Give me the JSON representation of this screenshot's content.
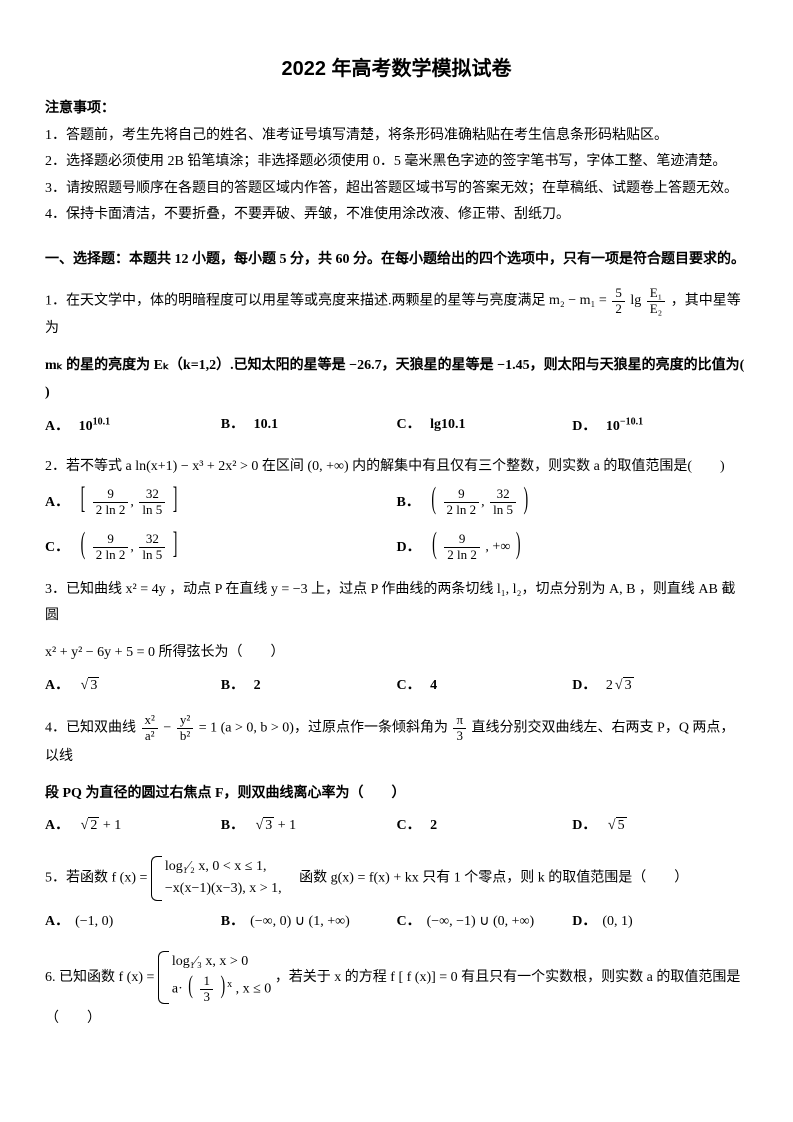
{
  "title": "2022 年高考数学模拟试卷",
  "notice_head": "注意事项：",
  "notice": [
    "1．答题前，考生先将自己的姓名、准考证号填写清楚，将条形码准确粘贴在考生信息条形码粘贴区。",
    "2．选择题必须使用 2B 铅笔填涂；非选择题必须使用 0．5 毫米黑色字迹的签字笔书写，字体工整、笔迹清楚。",
    "3．请按照题号顺序在各题目的答题区域内作答，超出答题区域书写的答案无效；在草稿纸、试题卷上答题无效。",
    "4．保持卡面清洁，不要折叠，不要弄破、弄皱，不准使用涂改液、修正带、刮纸刀。"
  ],
  "section1": "一、选择题：本题共 12 小题，每小题 5 分，共 60 分。在每小题给出的四个选项中，只有一项是符合题目要求的。",
  "q1_a": "1．在天文学中，体的明暗程度可以用星等或亮度来描述.两颗星的星等与亮度满足 ",
  "q1_eq_lhs": "m₂ − m₁ = ",
  "q1_frac_n": "5",
  "q1_frac_d": "2",
  "q1_eq_rhs_a": "lg",
  "q1_frac2_n": "E₁",
  "q1_frac2_d": "E₂",
  "q1_b": "，其中星等为",
  "q1_line2_a": "mₖ 的星的亮度为 Eₖ（k=1,2）.已知太阳的星等是 −26.7，天狼星的星等是 −1.45，则太阳与天狼星的亮度的比值为(",
  "q1_line2_b": ")",
  "q1_opts": {
    "A": "10",
    "Asup": "10.1",
    "B": "10.1",
    "C": "lg10.1",
    "D": "10",
    "Dsup": "−10.1"
  },
  "q2": "2．若不等式 a ln(x+1) − x³ + 2x² > 0 在区间 (0, +∞) 内的解集中有且仅有三个整数，则实数 a 的取值范围是(　　)",
  "q2A_l": "[",
  "q2A_n1": "9",
  "q2A_d1": "2 ln 2",
  "q2A_n2": "32",
  "q2A_d2": "ln 5",
  "q2A_r": "]",
  "q2B_l": "(",
  "q2B_n1": "9",
  "q2B_d1": "2 ln 2",
  "q2B_n2": "32",
  "q2B_d2": "ln 5",
  "q2B_r": ")",
  "q2C_l": "(",
  "q2C_n1": "9",
  "q2C_d1": "2 ln 2",
  "q2C_n2": "32",
  "q2C_d2": "ln 5",
  "q2C_r": "]",
  "q2D_l": "(",
  "q2D_n1": "9",
  "q2D_d1": "2 ln 2",
  "q2D_rest": ", +∞",
  "q2D_r": ")",
  "q3_a": "3．已知曲线 x² = 4y ，动点 P 在直线 y = −3 上，过点 P 作曲线的两条切线 l₁, l₂，切点分别为 A, B ，则直线 AB 截圆",
  "q3_b": "x² + y² − 6y + 5 = 0 所得弦长为（　　）",
  "q3_opts": {
    "A": "3",
    "B": "2",
    "C": "4",
    "D": "2",
    "Dsqrt": "3"
  },
  "q4_a": "4．已知双曲线 ",
  "q4_f1n": "x²",
  "q4_f1d": "a²",
  "q4_minus": " − ",
  "q4_f2n": "y²",
  "q4_f2d": "b²",
  "q4_b": " = 1 (a > 0, b > 0)，过原点作一条倾斜角为 ",
  "q4_f3n": "π",
  "q4_f3d": "3",
  "q4_c": " 直线分别交双曲线左、右两支 P，Q 两点，以线",
  "q4_line2": "段 PQ 为直径的圆过右焦点 F，则双曲线离心率为（　　）",
  "q4_opts": {
    "A": "2",
    "Aplus": " + 1",
    "B": "3",
    "Bplus": " + 1",
    "C": "2",
    "D": "5"
  },
  "q5_a": "5．若函数 f (x) = ",
  "q5_case1": "log₁⁄₂ x, 0 < x ≤ 1,",
  "q5_case2": "−x(x−1)(x−3), x > 1,",
  "q5_b": "　函数 g(x) = f(x) + kx 只有 1 个零点，则 k 的取值范围是（　　）",
  "q5_opts": {
    "A": "(−1, 0)",
    "B": "(−∞, 0) ∪ (1, +∞)",
    "C": "(−∞, −1) ∪ (0, +∞)",
    "D": "(0, 1)"
  },
  "q6_a": "6. 已知函数 f (x) = ",
  "q6_case1": "log₁⁄₃ x, x > 0",
  "q6_case2_a": "a·",
  "q6_case2_b": "(",
  "q6_case2_fn": "1",
  "q6_case2_fd": "3",
  "q6_case2_c": ")",
  "q6_case2_s": "x",
  "q6_case2_d": ", x ≤ 0",
  "q6_b": "，若关于 x 的方程 f [ f (x)] = 0 有且只有一个实数根，则实数 a 的取值范围是（　　）",
  "labels": {
    "A": "A．",
    "B": "B．",
    "C": "C．",
    "D": "D．"
  }
}
